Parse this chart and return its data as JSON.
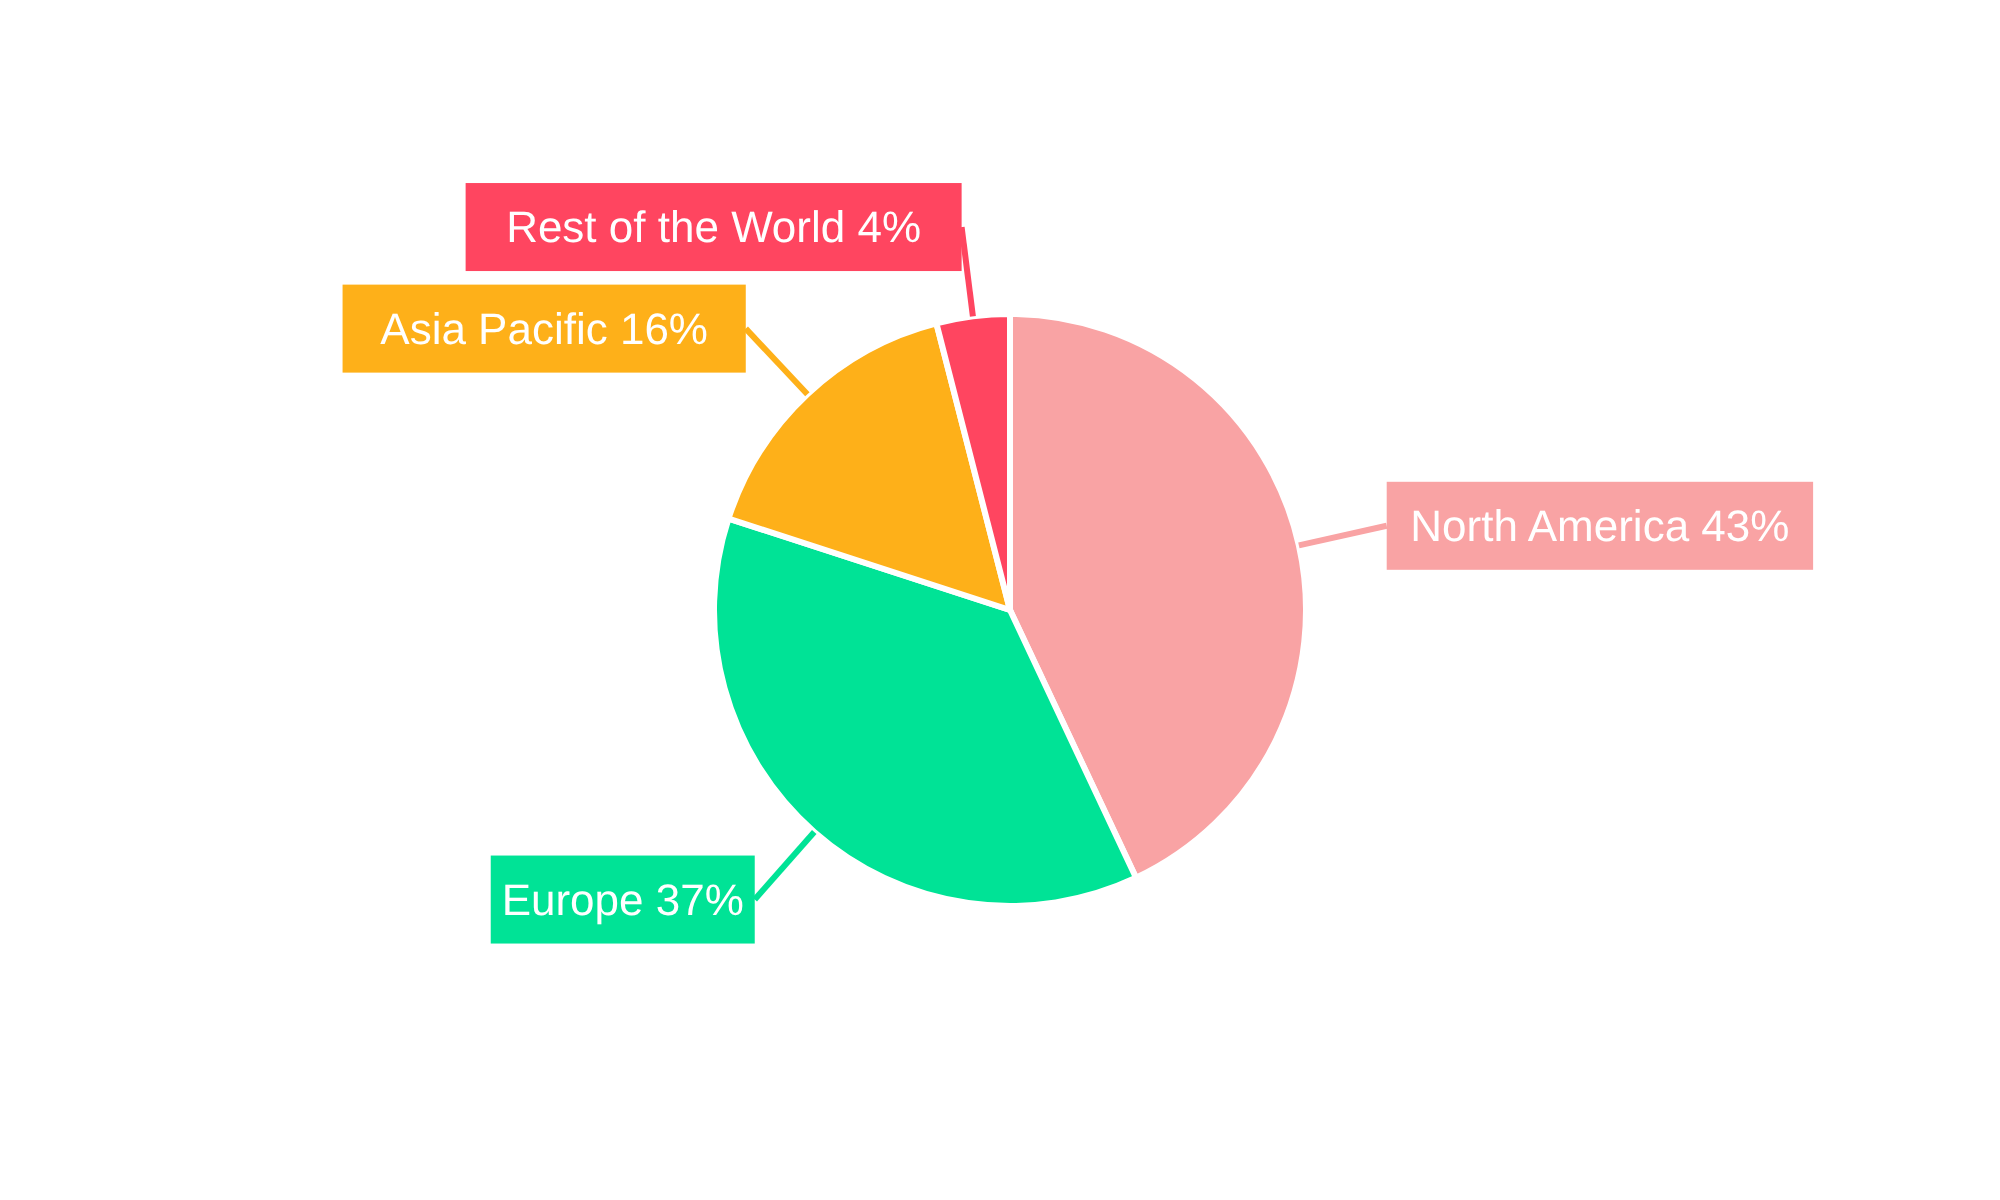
{
  "chart_data": {
    "type": "pie",
    "categories": [
      "North America",
      "Europe",
      "Asia Pacific",
      "Rest of the World"
    ],
    "values": [
      43,
      37,
      16,
      4
    ],
    "value_labels": [
      "43%",
      "37%",
      "16%",
      "4%"
    ],
    "colors": [
      "#f9a3a4",
      "#00e396",
      "#feb019",
      "#ff4560"
    ],
    "legend": false
  }
}
